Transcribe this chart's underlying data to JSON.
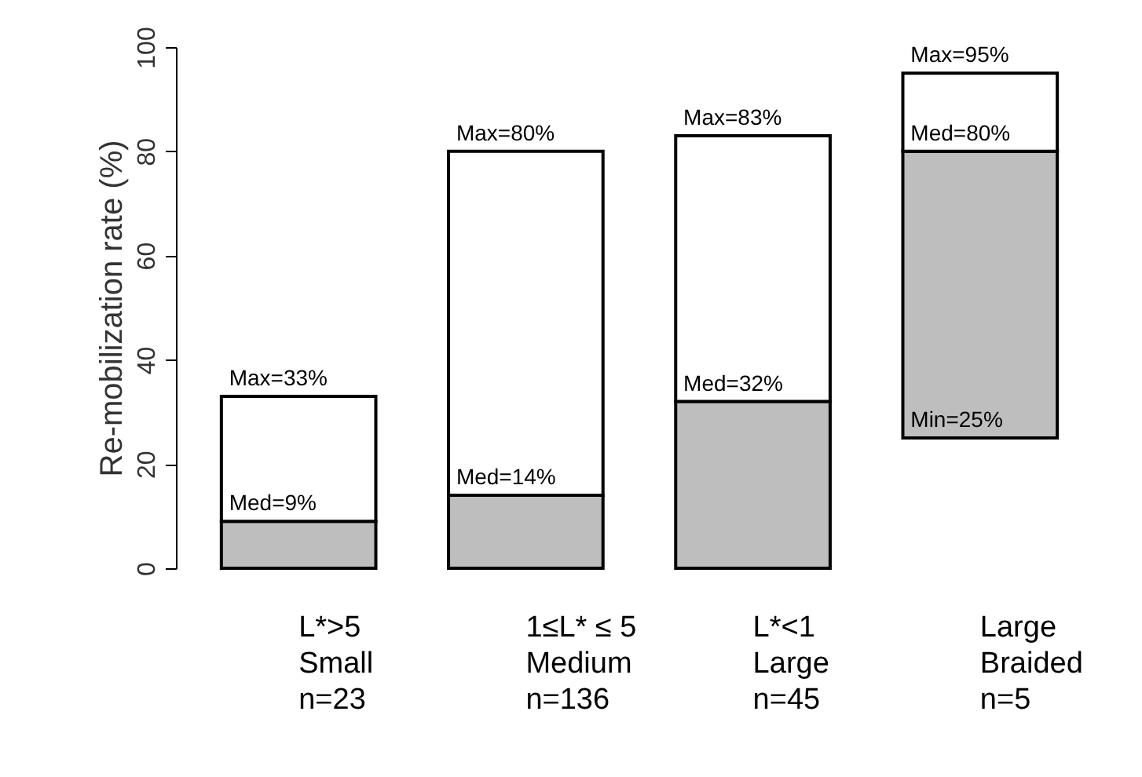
{
  "chart_data": {
    "type": "bar",
    "ylabel": "Re-mobilization rate (%)",
    "categories": [
      "L*>5\nSmall\n\nn=23",
      "1≤L* ≤ 5\nMedium\n\nn=136",
      "L*<1\nLarge\n\nn=45",
      "Large\nBraided\n\nn=5"
    ],
    "series": [
      {
        "color": "#bebebe",
        "base": [
          0,
          0,
          0,
          25
        ],
        "values": [
          9,
          14,
          32,
          55
        ]
      },
      {
        "color": "#ffffff",
        "base": [
          9,
          14,
          32,
          80
        ],
        "values": [
          24,
          66,
          51,
          15
        ]
      }
    ],
    "annotations": [
      {
        "text": "Max=33%",
        "x": "L*>5\nSmall\n\nn=23",
        "y": 33
      },
      {
        "text": "Max=80%",
        "x": "1≤L* ≤ 5\nMedium\n\nn=136",
        "y": 80
      },
      {
        "text": "Max=83%",
        "x": "L*<1\nLarge\n\nn=45",
        "y": 83
      },
      {
        "text": "Max=95%",
        "x": "Large\nBraided\n\nn=5",
        "y": 95
      },
      {
        "text": "Med=9%",
        "x": "L*>5\nSmall\n\nn=23",
        "y": 9
      },
      {
        "text": "Med=14%",
        "x": "1≤L* ≤ 5\nMedium\n\nn=136",
        "y": 14
      },
      {
        "text": "Med=32%",
        "x": "L*<1\nLarge\n\nn=45",
        "y": 32
      },
      {
        "text": "Med=80%",
        "x": "Large\nBraided\n\nn=5",
        "y": 80
      },
      {
        "text": "Min=25%",
        "x": "Large\nBraided\n\nn=5",
        "y": 25
      }
    ],
    "ylim": [
      0,
      100
    ],
    "yticks": [
      0,
      20,
      40,
      60,
      80,
      100
    ],
    "grid": false
  }
}
